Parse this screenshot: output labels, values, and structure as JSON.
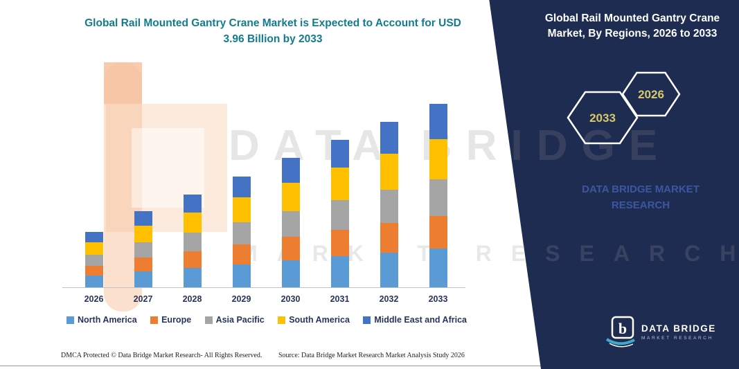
{
  "header": {
    "title_left": "Global Rail Mounted Gantry Crane Market is Expected to Account for USD 3.96 Billion by 2033",
    "title_right": "Global Rail Mounted Gantry Crane Market, By Regions, 2026 to 2033"
  },
  "side_panel": {
    "hexagons": [
      "2033",
      "2026"
    ],
    "brand_text": "DATA BRIDGE MARKET RESEARCH"
  },
  "watermark": {
    "line1": "DATA BRIDGE",
    "line2": "MARKET RESEARCH"
  },
  "colors": {
    "title_teal": "#127c8e",
    "panel_navy": "#1f2c52",
    "hexagon_year": "#d6c96b",
    "brand_blue": "#3b57a0",
    "label_navy": "#27355c"
  },
  "chart_data": {
    "type": "bar",
    "stacked": true,
    "title": "Global Rail Mounted Gantry Crane Market is Expected to Account for USD 3.96 Billion by 2033",
    "unit": "USD Billion",
    "categories": [
      "2026",
      "2027",
      "2028",
      "2029",
      "2030",
      "2031",
      "2032",
      "2033"
    ],
    "series": [
      {
        "name": "North America",
        "color": "#5B9BD5",
        "values": [
          0.25,
          0.34,
          0.42,
          0.5,
          0.59,
          0.67,
          0.75,
          0.83
        ]
      },
      {
        "name": "Europe",
        "color": "#ED7D31",
        "values": [
          0.22,
          0.3,
          0.36,
          0.43,
          0.5,
          0.57,
          0.64,
          0.71
        ]
      },
      {
        "name": "Asia Pacific",
        "color": "#A5A5A5",
        "values": [
          0.24,
          0.33,
          0.4,
          0.48,
          0.56,
          0.64,
          0.71,
          0.79
        ]
      },
      {
        "name": "South America",
        "color": "#FFC000",
        "values": [
          0.26,
          0.36,
          0.44,
          0.53,
          0.61,
          0.7,
          0.79,
          0.87
        ]
      },
      {
        "name": "Middle East and Africa",
        "color": "#4472C4",
        "values": [
          0.23,
          0.31,
          0.38,
          0.45,
          0.53,
          0.6,
          0.68,
          0.76
        ]
      }
    ],
    "totals": [
      1.2,
      1.64,
      2.0,
      2.39,
      2.79,
      3.18,
      3.57,
      3.96
    ],
    "ylim": [
      0,
      3.96
    ],
    "grid": false,
    "legend_position": "bottom"
  },
  "footer": {
    "dmca": "DMCA Protected © Data Bridge Market Research-  All Rights Reserved.",
    "source": "Source: Data Bridge Market Research  Market Analysis Study 2026"
  },
  "logo": {
    "name": "DATA BRIDGE",
    "sub": "MARKET RESEARCH"
  }
}
